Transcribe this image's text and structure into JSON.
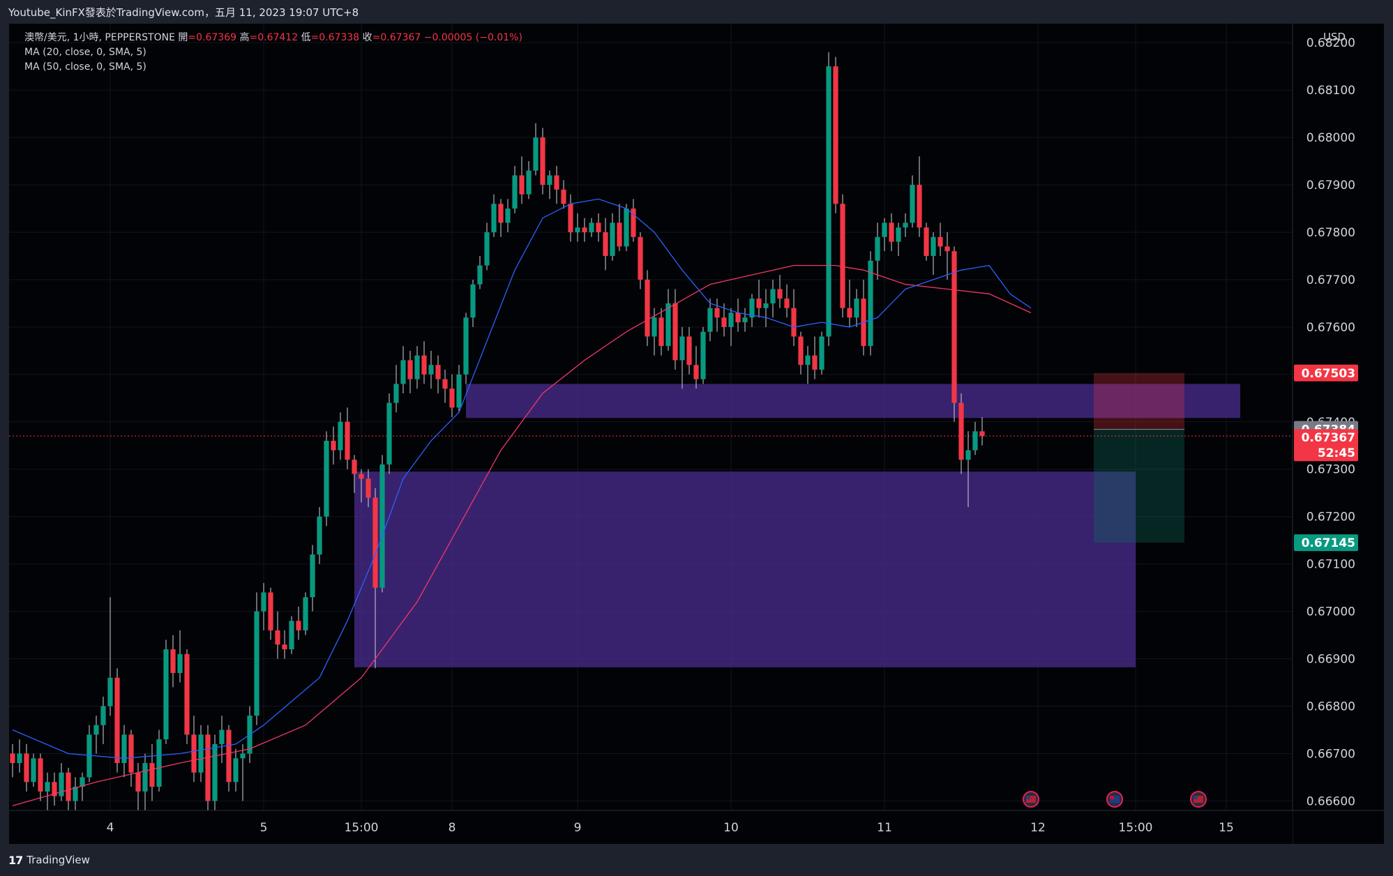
{
  "header": {
    "title": "Youtube_KinFX發表於TradingView.com，五月 11, 2023 19:07 UTC+8"
  },
  "legend": {
    "symbol": "澳幣/美元, 1小時, PEPPERSTONE",
    "open_label": "開",
    "open": "=0.67369",
    "high_label": "高",
    "high": "=0.67412",
    "low_label": "低",
    "low": "=0.67338",
    "close_label": "收",
    "close": "=0.67367",
    "change": "−0.00005 (−0.01%)",
    "ma20": "MA (20, close, 0, SMA, 5)",
    "ma50": "MA (50, close, 0, SMA, 5)"
  },
  "footer": {
    "brand": "TradingView",
    "logo": "tv-logo-icon"
  },
  "colors": {
    "up": "#089981",
    "down": "#f23645",
    "ma20": "#2962ff",
    "ma50": "#f23668",
    "zone": "#4b2d90",
    "tp": "#0d6b5c",
    "sl": "#f23645"
  },
  "chart_data": {
    "type": "candlestick",
    "currency": "USD",
    "ylim": [
      0.6658,
      0.6824
    ],
    "y_ticks": [
      "0.68200",
      "0.68100",
      "0.68000",
      "0.67900",
      "0.67800",
      "0.67700",
      "0.67600",
      "0.67500",
      "0.67400",
      "0.67300",
      "0.67200",
      "0.67100",
      "0.67000",
      "0.66900",
      "0.66800",
      "0.66700",
      "0.66600"
    ],
    "x_ticks": [
      {
        "label": "4",
        "index": 14
      },
      {
        "label": "5",
        "index": 36
      },
      {
        "label": "15:00",
        "index": 50
      },
      {
        "label": "8",
        "index": 63
      },
      {
        "label": "9",
        "index": 81
      },
      {
        "label": "10",
        "index": 103
      },
      {
        "label": "11",
        "index": 125
      },
      {
        "label": "12",
        "index": 147
      },
      {
        "label": "15:00",
        "index": 161
      },
      {
        "label": "15",
        "index": 174
      }
    ],
    "total_slots": 184,
    "candles": [
      [
        0.667,
        0.6672,
        0.6665,
        0.6668
      ],
      [
        0.6668,
        0.6673,
        0.6666,
        0.667
      ],
      [
        0.667,
        0.6672,
        0.6662,
        0.6664
      ],
      [
        0.6664,
        0.667,
        0.6663,
        0.6669
      ],
      [
        0.6669,
        0.667,
        0.666,
        0.6662
      ],
      [
        0.6662,
        0.6666,
        0.6658,
        0.6664
      ],
      [
        0.6664,
        0.6666,
        0.6659,
        0.6661
      ],
      [
        0.6661,
        0.6668,
        0.666,
        0.6666
      ],
      [
        0.6666,
        0.6667,
        0.6658,
        0.666
      ],
      [
        0.666,
        0.6665,
        0.6657,
        0.6663
      ],
      [
        0.6663,
        0.6666,
        0.666,
        0.6665
      ],
      [
        0.6665,
        0.6676,
        0.6664,
        0.6674
      ],
      [
        0.6674,
        0.6678,
        0.667,
        0.6676
      ],
      [
        0.6676,
        0.6682,
        0.6672,
        0.668
      ],
      [
        0.668,
        0.6703,
        0.6678,
        0.6686
      ],
      [
        0.6686,
        0.6688,
        0.6666,
        0.6668
      ],
      [
        0.6668,
        0.6676,
        0.6665,
        0.6674
      ],
      [
        0.6674,
        0.6675,
        0.6663,
        0.6666
      ],
      [
        0.6666,
        0.6668,
        0.6658,
        0.6662
      ],
      [
        0.6662,
        0.667,
        0.6658,
        0.6668
      ],
      [
        0.6668,
        0.6672,
        0.666,
        0.6663
      ],
      [
        0.6663,
        0.6675,
        0.6662,
        0.6673
      ],
      [
        0.6673,
        0.6694,
        0.6672,
        0.6692
      ],
      [
        0.6692,
        0.6695,
        0.6684,
        0.6687
      ],
      [
        0.6687,
        0.6696,
        0.6685,
        0.6691
      ],
      [
        0.6691,
        0.6692,
        0.6672,
        0.6674
      ],
      [
        0.6674,
        0.6678,
        0.6664,
        0.6666
      ],
      [
        0.6666,
        0.6676,
        0.6664,
        0.6674
      ],
      [
        0.6674,
        0.6676,
        0.6658,
        0.666
      ],
      [
        0.666,
        0.6674,
        0.6658,
        0.6672
      ],
      [
        0.6672,
        0.6678,
        0.6668,
        0.6675
      ],
      [
        0.6675,
        0.6676,
        0.6662,
        0.6664
      ],
      [
        0.6664,
        0.6671,
        0.6662,
        0.6669
      ],
      [
        0.6669,
        0.6672,
        0.666,
        0.667
      ],
      [
        0.667,
        0.668,
        0.6668,
        0.6678
      ],
      [
        0.6678,
        0.6704,
        0.6676,
        0.67
      ],
      [
        0.67,
        0.6706,
        0.6696,
        0.6704
      ],
      [
        0.6704,
        0.6705,
        0.6694,
        0.6696
      ],
      [
        0.6696,
        0.67,
        0.669,
        0.6693
      ],
      [
        0.6693,
        0.6696,
        0.669,
        0.6692
      ],
      [
        0.6692,
        0.6699,
        0.6691,
        0.6698
      ],
      [
        0.6698,
        0.6701,
        0.6694,
        0.6696
      ],
      [
        0.6696,
        0.6704,
        0.6695,
        0.6703
      ],
      [
        0.6703,
        0.6714,
        0.67,
        0.6712
      ],
      [
        0.6712,
        0.6722,
        0.671,
        0.672
      ],
      [
        0.672,
        0.6738,
        0.6718,
        0.6736
      ],
      [
        0.6736,
        0.6739,
        0.6731,
        0.6734
      ],
      [
        0.6734,
        0.6742,
        0.6732,
        0.674
      ],
      [
        0.674,
        0.6743,
        0.673,
        0.6732
      ],
      [
        0.6732,
        0.6733,
        0.6725,
        0.6729
      ],
      [
        0.6729,
        0.673,
        0.6723,
        0.6728
      ],
      [
        0.6728,
        0.673,
        0.6722,
        0.6724
      ],
      [
        0.6724,
        0.6726,
        0.6688,
        0.6705
      ],
      [
        0.6705,
        0.6733,
        0.6704,
        0.6731
      ],
      [
        0.6731,
        0.6746,
        0.6729,
        0.6744
      ],
      [
        0.6744,
        0.6752,
        0.6742,
        0.6748
      ],
      [
        0.6748,
        0.6756,
        0.6746,
        0.6753
      ],
      [
        0.6753,
        0.6755,
        0.6746,
        0.6749
      ],
      [
        0.6749,
        0.6756,
        0.6747,
        0.6754
      ],
      [
        0.6754,
        0.6757,
        0.6748,
        0.675
      ],
      [
        0.675,
        0.6755,
        0.6747,
        0.6752
      ],
      [
        0.6752,
        0.6754,
        0.6746,
        0.6749
      ],
      [
        0.6749,
        0.6751,
        0.6744,
        0.6747
      ],
      [
        0.6747,
        0.675,
        0.6741,
        0.6743
      ],
      [
        0.6743,
        0.6752,
        0.6742,
        0.675
      ],
      [
        0.675,
        0.6763,
        0.6748,
        0.6762
      ],
      [
        0.6762,
        0.677,
        0.676,
        0.6769
      ],
      [
        0.6769,
        0.6775,
        0.6768,
        0.6773
      ],
      [
        0.6773,
        0.6782,
        0.6772,
        0.678
      ],
      [
        0.678,
        0.6788,
        0.6779,
        0.6786
      ],
      [
        0.6786,
        0.6787,
        0.6779,
        0.6782
      ],
      [
        0.6782,
        0.6787,
        0.678,
        0.6785
      ],
      [
        0.6785,
        0.6794,
        0.6784,
        0.6792
      ],
      [
        0.6792,
        0.6796,
        0.6786,
        0.6788
      ],
      [
        0.6788,
        0.6795,
        0.6787,
        0.6793
      ],
      [
        0.6793,
        0.6803,
        0.6792,
        0.68
      ],
      [
        0.68,
        0.6802,
        0.6788,
        0.679
      ],
      [
        0.679,
        0.6793,
        0.6787,
        0.6792
      ],
      [
        0.6792,
        0.6794,
        0.6786,
        0.6789
      ],
      [
        0.6789,
        0.6791,
        0.6785,
        0.6786
      ],
      [
        0.6786,
        0.6788,
        0.6778,
        0.678
      ],
      [
        0.678,
        0.6784,
        0.6778,
        0.6781
      ],
      [
        0.6781,
        0.6783,
        0.6778,
        0.678
      ],
      [
        0.678,
        0.6783,
        0.6779,
        0.6782
      ],
      [
        0.6782,
        0.6784,
        0.6778,
        0.678
      ],
      [
        0.678,
        0.6783,
        0.6772,
        0.6775
      ],
      [
        0.6775,
        0.6784,
        0.6774,
        0.6782
      ],
      [
        0.6782,
        0.6786,
        0.6776,
        0.6777
      ],
      [
        0.6777,
        0.6786,
        0.6776,
        0.6785
      ],
      [
        0.6785,
        0.6787,
        0.6778,
        0.6779
      ],
      [
        0.6779,
        0.678,
        0.6768,
        0.677
      ],
      [
        0.677,
        0.6772,
        0.6756,
        0.6758
      ],
      [
        0.6758,
        0.6764,
        0.6754,
        0.6762
      ],
      [
        0.6762,
        0.6764,
        0.6754,
        0.6756
      ],
      [
        0.6756,
        0.6768,
        0.6755,
        0.6765
      ],
      [
        0.6765,
        0.6768,
        0.6751,
        0.6753
      ],
      [
        0.6753,
        0.676,
        0.6747,
        0.6758
      ],
      [
        0.6758,
        0.676,
        0.675,
        0.6752
      ],
      [
        0.6752,
        0.6756,
        0.6747,
        0.6749
      ],
      [
        0.6749,
        0.676,
        0.6748,
        0.6759
      ],
      [
        0.6759,
        0.6766,
        0.6757,
        0.6764
      ],
      [
        0.6764,
        0.6766,
        0.6759,
        0.6762
      ],
      [
        0.6762,
        0.6765,
        0.6758,
        0.676
      ],
      [
        0.676,
        0.6764,
        0.6756,
        0.6763
      ],
      [
        0.6763,
        0.6766,
        0.6759,
        0.6761
      ],
      [
        0.6761,
        0.6764,
        0.6759,
        0.6762
      ],
      [
        0.6762,
        0.6767,
        0.676,
        0.6766
      ],
      [
        0.6766,
        0.677,
        0.6762,
        0.6764
      ],
      [
        0.6764,
        0.6768,
        0.676,
        0.6765
      ],
      [
        0.6765,
        0.677,
        0.6762,
        0.6768
      ],
      [
        0.6768,
        0.6771,
        0.6764,
        0.6766
      ],
      [
        0.6766,
        0.6769,
        0.6762,
        0.6764
      ],
      [
        0.6764,
        0.6768,
        0.6756,
        0.6758
      ],
      [
        0.6758,
        0.6759,
        0.675,
        0.6752
      ],
      [
        0.6752,
        0.6756,
        0.6748,
        0.6754
      ],
      [
        0.6754,
        0.6758,
        0.6749,
        0.6751
      ],
      [
        0.6751,
        0.6759,
        0.675,
        0.6758
      ],
      [
        0.6758,
        0.6818,
        0.6756,
        0.6815
      ],
      [
        0.6815,
        0.6817,
        0.6784,
        0.6786
      ],
      [
        0.6786,
        0.6788,
        0.6762,
        0.6764
      ],
      [
        0.6764,
        0.677,
        0.676,
        0.6762
      ],
      [
        0.6762,
        0.6768,
        0.676,
        0.6766
      ],
      [
        0.6766,
        0.677,
        0.6754,
        0.6756
      ],
      [
        0.6756,
        0.6776,
        0.6754,
        0.6774
      ],
      [
        0.6774,
        0.6782,
        0.677,
        0.6779
      ],
      [
        0.6779,
        0.6783,
        0.6776,
        0.6782
      ],
      [
        0.6782,
        0.6784,
        0.6776,
        0.6778
      ],
      [
        0.6778,
        0.6782,
        0.6775,
        0.6781
      ],
      [
        0.6781,
        0.6784,
        0.6779,
        0.6782
      ],
      [
        0.6782,
        0.6792,
        0.6781,
        0.679
      ],
      [
        0.679,
        0.6796,
        0.6779,
        0.6781
      ],
      [
        0.6781,
        0.6782,
        0.6774,
        0.6775
      ],
      [
        0.6775,
        0.678,
        0.6771,
        0.6779
      ],
      [
        0.6779,
        0.6782,
        0.6775,
        0.6777
      ],
      [
        0.6777,
        0.678,
        0.677,
        0.6776
      ],
      [
        0.6776,
        0.6777,
        0.674,
        0.6744
      ],
      [
        0.6744,
        0.6746,
        0.6729,
        0.6732
      ],
      [
        0.6732,
        0.6738,
        0.6722,
        0.6734
      ],
      [
        0.6734,
        0.674,
        0.6733,
        0.6738
      ],
      [
        0.6738,
        0.6741,
        0.6735,
        0.6737
      ]
    ],
    "ma20": [
      [
        0,
        0.6675
      ],
      [
        8,
        0.667
      ],
      [
        16,
        0.6669
      ],
      [
        24,
        0.667
      ],
      [
        32,
        0.6672
      ],
      [
        36,
        0.6676
      ],
      [
        40,
        0.6681
      ],
      [
        44,
        0.6686
      ],
      [
        48,
        0.6698
      ],
      [
        52,
        0.6712
      ],
      [
        56,
        0.6728
      ],
      [
        60,
        0.6736
      ],
      [
        64,
        0.6742
      ],
      [
        68,
        0.6757
      ],
      [
        72,
        0.6772
      ],
      [
        76,
        0.6783
      ],
      [
        80,
        0.6786
      ],
      [
        84,
        0.6787
      ],
      [
        88,
        0.6785
      ],
      [
        92,
        0.678
      ],
      [
        96,
        0.6772
      ],
      [
        100,
        0.6765
      ],
      [
        104,
        0.6763
      ],
      [
        108,
        0.6762
      ],
      [
        112,
        0.676
      ],
      [
        116,
        0.6761
      ],
      [
        120,
        0.676
      ],
      [
        124,
        0.6762
      ],
      [
        128,
        0.6768
      ],
      [
        132,
        0.677
      ],
      [
        136,
        0.6772
      ],
      [
        140,
        0.6773
      ],
      [
        143,
        0.6767
      ],
      [
        146,
        0.6764
      ]
    ],
    "ma50": [
      [
        0,
        0.6659
      ],
      [
        12,
        0.6664
      ],
      [
        24,
        0.6668
      ],
      [
        34,
        0.6671
      ],
      [
        42,
        0.6676
      ],
      [
        50,
        0.6686
      ],
      [
        58,
        0.6702
      ],
      [
        64,
        0.6718
      ],
      [
        70,
        0.6734
      ],
      [
        76,
        0.6746
      ],
      [
        82,
        0.6753
      ],
      [
        88,
        0.6759
      ],
      [
        94,
        0.6764
      ],
      [
        100,
        0.6769
      ],
      [
        106,
        0.6771
      ],
      [
        112,
        0.6773
      ],
      [
        118,
        0.6773
      ],
      [
        122,
        0.6772
      ],
      [
        128,
        0.6769
      ],
      [
        134,
        0.6768
      ],
      [
        140,
        0.6767
      ],
      [
        146,
        0.6763
      ]
    ],
    "zones": [
      {
        "x1": 65,
        "x2": 176,
        "top": 0.6748,
        "bottom": 0.67408
      },
      {
        "x1": 49,
        "x2": 161,
        "top": 0.67295,
        "bottom": 0.66882
      }
    ],
    "position": {
      "x1": 155,
      "x2": 168,
      "stop": 0.67503,
      "entry": 0.67384,
      "target": 0.67145
    },
    "badges": [
      {
        "text": "0.67503",
        "price": 0.67503,
        "type": "stop"
      },
      {
        "text": "0.67384",
        "price": 0.67384,
        "type": "entry"
      },
      {
        "text": "0.67367",
        "price": 0.67367,
        "type": "last"
      },
      {
        "text": "52:45",
        "price": 0.67367,
        "type": "countdown"
      },
      {
        "text": "0.67145",
        "price": 0.67145,
        "type": "target"
      }
    ],
    "events": [
      {
        "index": 146,
        "flag": "us-flag-icon"
      },
      {
        "index": 158,
        "flag": "au-flag-icon"
      },
      {
        "index": 170,
        "flag": "us-flag-icon"
      }
    ]
  }
}
